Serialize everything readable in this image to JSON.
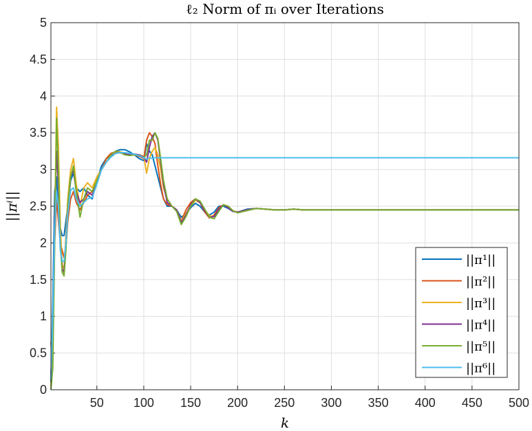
{
  "chart_data": {
    "type": "line",
    "title": "ℓ₂ Norm of πᵢ over Iterations",
    "xlabel": "k",
    "ylabel": "||πⁱ||",
    "xlim": [
      1,
      500
    ],
    "ylim": [
      0,
      5
    ],
    "xticks": [
      50,
      100,
      150,
      200,
      250,
      300,
      350,
      400,
      450,
      500
    ],
    "yticks": [
      0,
      0.5,
      1,
      1.5,
      2,
      2.5,
      3,
      3.5,
      4,
      4.5,
      5
    ],
    "grid": true,
    "legend_position": "bottom-right",
    "series": [
      {
        "name": "||π¹||",
        "color": "#0072BD",
        "x": [
          1,
          3,
          5,
          7,
          9,
          11,
          13,
          15,
          17,
          19,
          22,
          25,
          28,
          32,
          36,
          40,
          45,
          50,
          55,
          60,
          65,
          70,
          75,
          80,
          85,
          90,
          95,
          100,
          103,
          106,
          109,
          112,
          115,
          118,
          121,
          125,
          130,
          135,
          140,
          145,
          150,
          155,
          160,
          165,
          170,
          175,
          180,
          185,
          190,
          195,
          200,
          210,
          220,
          230,
          240,
          250,
          260,
          270,
          280,
          300,
          320,
          350,
          400,
          450,
          500
        ],
        "y": [
          0.1,
          1.2,
          2.7,
          2.9,
          2.4,
          2.2,
          2.1,
          2.1,
          2.3,
          2.5,
          2.85,
          2.95,
          2.75,
          2.7,
          2.75,
          2.65,
          2.6,
          2.85,
          3.05,
          3.15,
          3.2,
          3.25,
          3.27,
          3.27,
          3.24,
          3.2,
          3.15,
          3.12,
          3.35,
          3.25,
          3.2,
          3.05,
          2.9,
          2.75,
          2.6,
          2.5,
          2.5,
          2.45,
          2.35,
          2.4,
          2.48,
          2.54,
          2.5,
          2.42,
          2.38,
          2.42,
          2.5,
          2.5,
          2.47,
          2.43,
          2.42,
          2.46,
          2.47,
          2.46,
          2.45,
          2.45,
          2.46,
          2.45,
          2.45,
          2.45,
          2.45,
          2.45,
          2.45,
          2.45,
          2.45
        ]
      },
      {
        "name": "||π²||",
        "color": "#D95319",
        "x": [
          1,
          2,
          3,
          5,
          7,
          9,
          11,
          13,
          15,
          17,
          19,
          22,
          25,
          28,
          32,
          36,
          40,
          45,
          50,
          55,
          60,
          65,
          70,
          75,
          80,
          85,
          90,
          95,
          100,
          103,
          106,
          109,
          112,
          115,
          118,
          121,
          125,
          130,
          135,
          140,
          145,
          150,
          155,
          160,
          165,
          170,
          175,
          180,
          185,
          190,
          195,
          200,
          210,
          220,
          230,
          240,
          250,
          260,
          270,
          280,
          300,
          320,
          350,
          400,
          450,
          500
        ],
        "y": [
          0.65,
          0.4,
          0.6,
          2.0,
          2.6,
          2.3,
          2.0,
          1.9,
          1.8,
          1.95,
          2.3,
          2.6,
          2.7,
          2.55,
          2.45,
          2.55,
          2.65,
          2.7,
          2.85,
          3.0,
          3.15,
          3.22,
          3.24,
          3.23,
          3.2,
          3.21,
          3.2,
          3.18,
          3.15,
          3.4,
          3.5,
          3.45,
          3.35,
          3.05,
          2.8,
          2.6,
          2.52,
          2.5,
          2.44,
          2.3,
          2.45,
          2.55,
          2.6,
          2.55,
          2.42,
          2.34,
          2.38,
          2.48,
          2.52,
          2.48,
          2.43,
          2.42,
          2.45,
          2.47,
          2.46,
          2.45,
          2.45,
          2.46,
          2.45,
          2.45,
          2.45,
          2.45,
          2.45,
          2.45,
          2.45,
          2.45
        ]
      },
      {
        "name": "||π³||",
        "color": "#EDB120",
        "x": [
          1,
          3,
          5,
          7,
          9,
          11,
          13,
          15,
          17,
          19,
          22,
          25,
          28,
          32,
          36,
          40,
          45,
          50,
          55,
          60,
          65,
          70,
          75,
          80,
          85,
          90,
          95,
          100,
          103,
          106,
          109,
          112,
          115,
          118,
          121,
          125,
          130,
          135,
          140,
          145,
          150,
          155,
          160,
          165,
          170,
          175,
          180,
          185,
          190,
          195,
          200,
          210,
          220,
          230,
          240,
          250,
          260,
          270,
          280,
          300,
          320,
          350,
          400,
          450,
          500
        ],
        "y": [
          0.05,
          0.5,
          2.2,
          3.85,
          3.3,
          2.2,
          1.7,
          1.65,
          2.1,
          2.6,
          3.0,
          3.15,
          2.8,
          2.5,
          2.75,
          2.82,
          2.75,
          2.9,
          3.0,
          3.1,
          3.2,
          3.25,
          3.24,
          3.22,
          3.2,
          3.21,
          3.2,
          3.18,
          2.95,
          3.15,
          3.25,
          3.3,
          3.2,
          3.0,
          2.75,
          2.6,
          2.5,
          2.45,
          2.3,
          2.4,
          2.5,
          2.58,
          2.55,
          2.45,
          2.37,
          2.36,
          2.45,
          2.52,
          2.49,
          2.44,
          2.42,
          2.45,
          2.47,
          2.46,
          2.45,
          2.45,
          2.46,
          2.45,
          2.45,
          2.45,
          2.45,
          2.45,
          2.45,
          2.45,
          2.45
        ]
      },
      {
        "name": "||π⁴||",
        "color": "#7E2F8E",
        "x": [
          1,
          3,
          5,
          7,
          9,
          11,
          13,
          15,
          17,
          19,
          22,
          25,
          28,
          32,
          36,
          40,
          45,
          50,
          55,
          60,
          65,
          70,
          75,
          80,
          85,
          90,
          95,
          100,
          103,
          106,
          109,
          112,
          115,
          118,
          121,
          125,
          130,
          135,
          140,
          145,
          150,
          155,
          160,
          165,
          170,
          175,
          180,
          185,
          190,
          195,
          200,
          210,
          220,
          230,
          240,
          250,
          260,
          270,
          280,
          300,
          320,
          350,
          400,
          450,
          500
        ],
        "y": [
          0.2,
          0.9,
          2.3,
          3.25,
          2.8,
          2.0,
          1.65,
          1.6,
          2.0,
          2.5,
          2.9,
          3.0,
          2.7,
          2.55,
          2.6,
          2.7,
          2.65,
          2.85,
          3.0,
          3.1,
          3.18,
          3.22,
          3.23,
          3.22,
          3.2,
          3.21,
          3.2,
          3.17,
          3.1,
          3.3,
          3.45,
          3.5,
          3.4,
          3.1,
          2.8,
          2.55,
          2.5,
          2.45,
          2.28,
          2.38,
          2.52,
          2.6,
          2.55,
          2.44,
          2.35,
          2.36,
          2.46,
          2.52,
          2.48,
          2.43,
          2.42,
          2.45,
          2.47,
          2.46,
          2.45,
          2.45,
          2.46,
          2.45,
          2.45,
          2.45,
          2.45,
          2.45,
          2.45,
          2.45,
          2.45
        ]
      },
      {
        "name": "||π⁵||",
        "color": "#77AC30",
        "x": [
          1,
          3,
          5,
          7,
          9,
          11,
          13,
          15,
          17,
          19,
          22,
          25,
          28,
          32,
          36,
          40,
          45,
          50,
          55,
          60,
          65,
          70,
          75,
          80,
          85,
          90,
          95,
          100,
          103,
          106,
          109,
          112,
          115,
          118,
          121,
          125,
          130,
          135,
          140,
          145,
          150,
          155,
          160,
          165,
          170,
          175,
          180,
          185,
          190,
          195,
          200,
          210,
          220,
          230,
          240,
          250,
          260,
          270,
          280,
          300,
          320,
          350,
          400,
          450,
          500
        ],
        "y": [
          0.0,
          0.3,
          2.0,
          3.7,
          3.0,
          2.0,
          1.6,
          1.55,
          1.9,
          2.5,
          2.9,
          3.05,
          2.7,
          2.35,
          2.6,
          2.75,
          2.7,
          2.85,
          3.0,
          3.1,
          3.2,
          3.25,
          3.23,
          3.2,
          3.19,
          3.2,
          3.19,
          3.16,
          3.2,
          3.4,
          3.4,
          3.5,
          3.42,
          3.15,
          2.85,
          2.6,
          2.5,
          2.43,
          2.25,
          2.36,
          2.5,
          2.6,
          2.57,
          2.46,
          2.35,
          2.33,
          2.43,
          2.52,
          2.5,
          2.44,
          2.41,
          2.44,
          2.47,
          2.46,
          2.45,
          2.45,
          2.46,
          2.45,
          2.45,
          2.45,
          2.45,
          2.45,
          2.45,
          2.45,
          2.45
        ]
      },
      {
        "name": "||π⁶||",
        "color": "#4DBEEE",
        "x": [
          1,
          3,
          5,
          7,
          9,
          11,
          13,
          15,
          17,
          19,
          22,
          25,
          28,
          32,
          36,
          40,
          45,
          50,
          55,
          60,
          65,
          70,
          75,
          80,
          85,
          90,
          95,
          100,
          103,
          106,
          109,
          112,
          115,
          118,
          121,
          125,
          150,
          200,
          250,
          300,
          350,
          400,
          450,
          500
        ],
        "y": [
          0.15,
          1.0,
          2.2,
          2.7,
          2.5,
          1.9,
          1.75,
          1.75,
          2.0,
          2.4,
          2.72,
          2.75,
          2.6,
          2.5,
          2.55,
          2.6,
          2.62,
          2.8,
          3.0,
          3.1,
          3.17,
          3.22,
          3.23,
          3.23,
          3.22,
          3.21,
          3.19,
          3.16,
          3.14,
          3.16,
          3.15,
          3.16,
          3.16,
          3.16,
          3.16,
          3.16,
          3.16,
          3.16,
          3.16,
          3.16,
          3.16,
          3.16,
          3.16,
          3.16
        ]
      }
    ]
  }
}
